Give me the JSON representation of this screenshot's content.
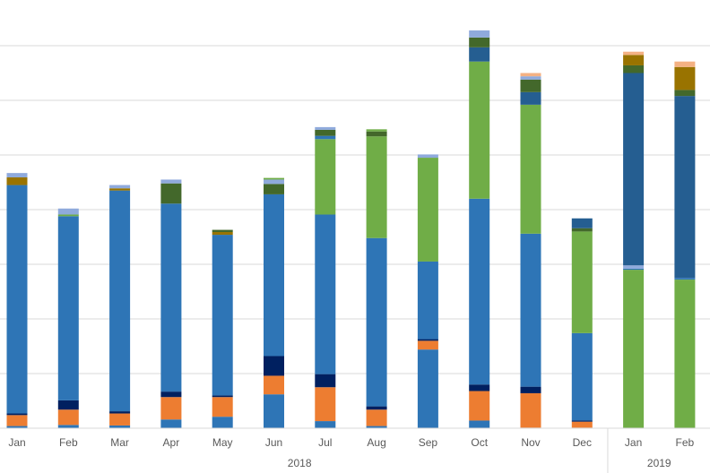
{
  "chart_data": {
    "type": "bar",
    "stacked": true,
    "title": "",
    "xlabel": "",
    "ylabel": "",
    "ylim": [
      0,
      70
    ],
    "gridlines": [
      0,
      10,
      20,
      30,
      40,
      50,
      60,
      70
    ],
    "grid": true,
    "legend": "none",
    "categories": [
      "Jan",
      "Feb",
      "Mar",
      "Apr",
      "May",
      "Jun",
      "Jul",
      "Aug",
      "Sep",
      "Oct",
      "Nov",
      "Dec",
      "Jan",
      "Feb"
    ],
    "groups": [
      {
        "label": "2018",
        "count": 12
      },
      {
        "label": "2019",
        "count": 2
      }
    ],
    "colors": {
      "s1": "#2E75B6",
      "s2": "#ED7D31",
      "s3": "#002060",
      "s4": "#2E75B6",
      "s5": "#70AD47",
      "s6": "#2E75B6",
      "s7": "#8FAADC",
      "s8": "#255E91",
      "s9": "#002060",
      "s10": "#43682B",
      "s11": "#997300",
      "s12": "#F4B183",
      "s13": "#5B9BD5"
    },
    "series": [
      {
        "key": "s1",
        "values": [
          0.4,
          0.6,
          0.5,
          1.6,
          2.1,
          6.2,
          1.3,
          0.4,
          14.4,
          1.4,
          0.1,
          0.1,
          0,
          0
        ]
      },
      {
        "key": "s2",
        "values": [
          2.0,
          2.8,
          2.2,
          4.1,
          3.6,
          3.4,
          6.2,
          3.0,
          1.6,
          5.4,
          6.3,
          1.1,
          0,
          0
        ]
      },
      {
        "key": "s3",
        "values": [
          0.3,
          1.7,
          0.4,
          1.0,
          0.3,
          3.6,
          2.4,
          0.6,
          0.3,
          1.2,
          1.2,
          0.2,
          0,
          0
        ]
      },
      {
        "key": "s4",
        "values": [
          41.8,
          33.7,
          40.4,
          34.4,
          29.4,
          29.6,
          29.2,
          30.8,
          14.2,
          34.0,
          28.0,
          16.0,
          0,
          0
        ]
      },
      {
        "key": "s5",
        "values": [
          0,
          0,
          0,
          0,
          0,
          0,
          13.8,
          18.6,
          19.0,
          25.1,
          23.6,
          18.6,
          29.0,
          27.2
        ]
      },
      {
        "key": "s6",
        "values": [
          0,
          0,
          0,
          0,
          0,
          0,
          0,
          0,
          0,
          0,
          0,
          0,
          0.2,
          0.3
        ]
      },
      {
        "key": "s7",
        "values": [
          0,
          0,
          0,
          0,
          0,
          0,
          0,
          0,
          0,
          0,
          0,
          0,
          0.6,
          0
        ]
      },
      {
        "key": "s8",
        "values": [
          0,
          0,
          0,
          0,
          0,
          0,
          0,
          0,
          0,
          0,
          0,
          0,
          35.2,
          33.3
        ]
      },
      {
        "key": "s9",
        "values": [
          0,
          0,
          0,
          0,
          0,
          0,
          0,
          0,
          0,
          0,
          0,
          0,
          0,
          0
        ]
      },
      {
        "key": "s10",
        "values": [
          0,
          0,
          0,
          0,
          0,
          0,
          0,
          0,
          0,
          0,
          0,
          0,
          1.4,
          1.1
        ]
      },
      {
        "key": "s11",
        "values": [
          0,
          0,
          0,
          0,
          0,
          0,
          0,
          0,
          0,
          0,
          0,
          0,
          1.9,
          4.2
        ]
      },
      {
        "key": "s12",
        "values": [
          0,
          0,
          0,
          0,
          0,
          0,
          0,
          0,
          0,
          0,
          0,
          0,
          0.6,
          1.0
        ]
      },
      {
        "key": "s13",
        "values": [
          0,
          0,
          0,
          0,
          0,
          0,
          0,
          0,
          0,
          0,
          0,
          0,
          0,
          0
        ]
      }
    ],
    "top_segments": [
      [
        [
          "#3E3E3E",
          0
        ],
        [
          "#997300",
          1.4
        ],
        [
          "#8FAADC",
          0.8
        ]
      ],
      [
        [
          "#70AD47",
          0.3
        ],
        [
          "#8FAADC",
          1.1
        ]
      ],
      [
        [
          "#3E3E3E",
          0
        ],
        [
          "#997300",
          0.4
        ],
        [
          "#8FAADC",
          0.6
        ]
      ],
      [
        [
          "#43682B",
          3.7
        ],
        [
          "#8FAADC",
          0.7
        ]
      ],
      [
        [
          "#997300",
          0.5
        ],
        [
          "#43682B",
          0.4
        ]
      ],
      [
        [
          "#43682B",
          1.9
        ],
        [
          "#8FAADC",
          0.8
        ],
        [
          "#70AD47",
          0.3
        ]
      ],
      [
        [
          "#2E75B6",
          0.6
        ],
        [
          "#43682B",
          1.1
        ],
        [
          "#8FAADC",
          0.5
        ]
      ],
      [
        [
          "#43682B",
          0.9
        ],
        [
          "#70AD47",
          0.4
        ]
      ],
      [
        [
          "#8FAADC",
          0.6
        ]
      ],
      [
        [
          "#255E91",
          2.6
        ],
        [
          "#43682B",
          1.8
        ],
        [
          "#8FAADC",
          1.3
        ]
      ],
      [
        [
          "#255E91",
          2.3
        ],
        [
          "#43682B",
          2.3
        ],
        [
          "#8FAADC",
          0.6
        ],
        [
          "#F4B183",
          0.6
        ]
      ],
      [
        [
          "#43682B",
          0.6
        ],
        [
          "#255E91",
          1.8
        ]
      ],
      [],
      []
    ]
  }
}
